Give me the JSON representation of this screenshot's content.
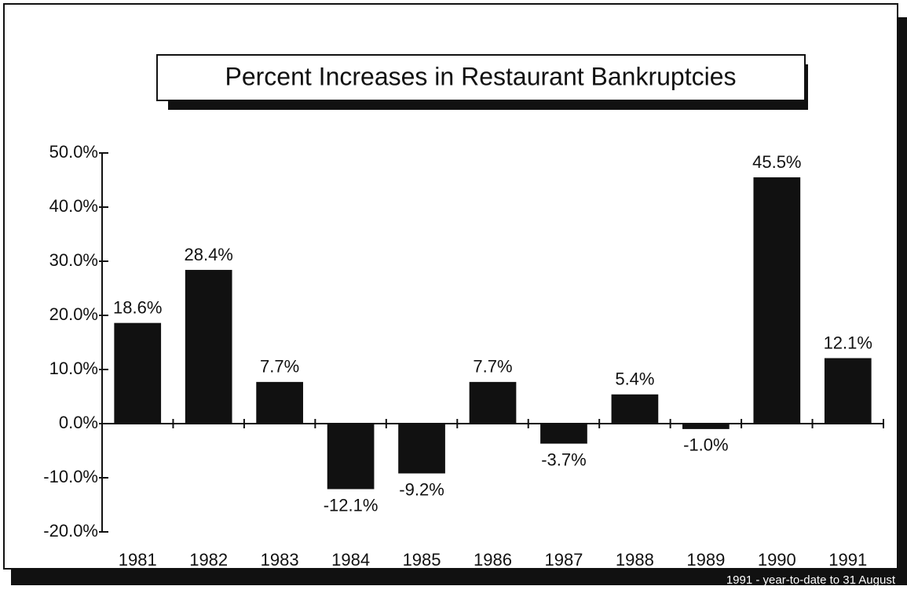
{
  "chart_data": {
    "type": "bar",
    "title": "Percent Increases in Restaurant Bankruptcies",
    "categories": [
      "1981",
      "1982",
      "1983",
      "1984",
      "1985",
      "1986",
      "1987",
      "1988",
      "1989",
      "1990",
      "1991"
    ],
    "values": [
      18.6,
      28.4,
      7.7,
      -12.1,
      -9.2,
      7.7,
      -3.7,
      5.4,
      -1.0,
      45.5,
      12.1
    ],
    "value_labels": [
      "18.6%",
      "28.4%",
      "7.7%",
      "-12.1%",
      "-9.2%",
      "7.7%",
      "-3.7%",
      "5.4%",
      "-1.0%",
      "45.5%",
      "12.1%"
    ],
    "color": "#111111",
    "ylim": [
      -20,
      50
    ],
    "yticks": [
      {
        "value": -20,
        "label": "-20.0%"
      },
      {
        "value": -10,
        "label": "-10.0%"
      },
      {
        "value": 0,
        "label": "0.0%"
      },
      {
        "value": 10,
        "label": "10.0%"
      },
      {
        "value": 20,
        "label": "20.0%"
      },
      {
        "value": 30,
        "label": "30.0%"
      },
      {
        "value": 40,
        "label": "40.0%"
      },
      {
        "value": 50,
        "label": "50.0%"
      }
    ],
    "grid": false,
    "note": "1991 - year-to-date to 31 August"
  }
}
